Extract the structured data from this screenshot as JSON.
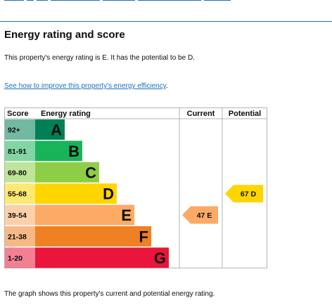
{
  "page": {
    "heading": "Energy rating and score",
    "summary": "This property's energy rating is E. It has the potential to be D.",
    "improve_link_text": "See how to improve this property's energy efficiency",
    "improve_link_suffix": ".",
    "caption": "The graph shows this property's current and potential energy rating."
  },
  "chart_data": {
    "type": "bar",
    "headers": {
      "score": "Score",
      "rating": "Energy rating",
      "current": "Current",
      "potential": "Potential"
    },
    "bands": [
      {
        "letter": "A",
        "range": "92+",
        "color": "#008054",
        "label_color": "#0b0c0c"
      },
      {
        "letter": "B",
        "range": "81-91",
        "color": "#19b459",
        "label_color": "#0b0c0c"
      },
      {
        "letter": "C",
        "range": "69-80",
        "color": "#8dce46",
        "label_color": "#0b0c0c"
      },
      {
        "letter": "D",
        "range": "55-68",
        "color": "#ffd500",
        "label_color": "#0b0c0c"
      },
      {
        "letter": "E",
        "range": "39-54",
        "color": "#fcaa65",
        "label_color": "#0b0c0c"
      },
      {
        "letter": "F",
        "range": "21-38",
        "color": "#ef8023",
        "label_color": "#0b0c0c"
      },
      {
        "letter": "G",
        "range": "1-20",
        "color": "#e9153b",
        "label_color": "#0b0c0c"
      }
    ],
    "current": {
      "score": 47,
      "letter": "E",
      "label": "47  E",
      "color": "#fcaa65"
    },
    "potential": {
      "score": 67,
      "letter": "D",
      "label": "67  D",
      "color": "#ffd500"
    }
  }
}
